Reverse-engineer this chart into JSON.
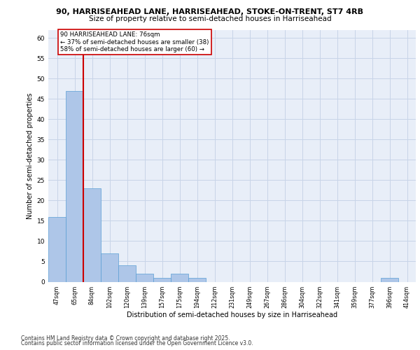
{
  "title_line1": "90, HARRISEAHEAD LANE, HARRISEAHEAD, STOKE-ON-TRENT, ST7 4RB",
  "title_line2": "Size of property relative to semi-detached houses in Harriseahead",
  "xlabel": "Distribution of semi-detached houses by size in Harriseahead",
  "ylabel": "Number of semi-detached properties",
  "categories": [
    "47sqm",
    "65sqm",
    "84sqm",
    "102sqm",
    "120sqm",
    "139sqm",
    "157sqm",
    "175sqm",
    "194sqm",
    "212sqm",
    "231sqm",
    "249sqm",
    "267sqm",
    "286sqm",
    "304sqm",
    "322sqm",
    "341sqm",
    "359sqm",
    "377sqm",
    "396sqm",
    "414sqm"
  ],
  "values": [
    16,
    47,
    23,
    7,
    4,
    2,
    1,
    2,
    1,
    0,
    0,
    0,
    0,
    0,
    0,
    0,
    0,
    0,
    0,
    1,
    0
  ],
  "bar_color": "#aec6e8",
  "bar_edge_color": "#5a9fd4",
  "grid_color": "#c8d4e8",
  "background_color": "#e8eef8",
  "property_label": "90 HARRISEAHEAD LANE: 76sqm",
  "pct_smaller": 37,
  "pct_smaller_count": 38,
  "pct_larger": 58,
  "pct_larger_count": 60,
  "vline_x_index": 1.5,
  "annotation_box_color": "#cc0000",
  "ylim": [
    0,
    62
  ],
  "yticks": [
    0,
    5,
    10,
    15,
    20,
    25,
    30,
    35,
    40,
    45,
    50,
    55,
    60
  ],
  "footer_line1": "Contains HM Land Registry data © Crown copyright and database right 2025.",
  "footer_line2": "Contains public sector information licensed under the Open Government Licence v3.0."
}
